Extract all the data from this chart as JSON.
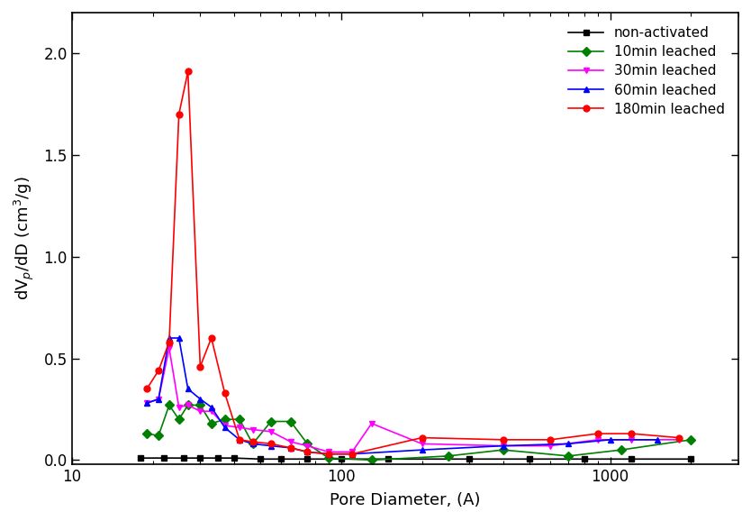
{
  "title": "",
  "xlabel": "Pore Diameter, (A)",
  "ylabel": "dV_p/dD (cm3/g)",
  "xlim": [
    10,
    3000
  ],
  "ylim": [
    -0.02,
    2.2
  ],
  "yticks": [
    0.0,
    0.5,
    1.0,
    1.5,
    2.0
  ],
  "series": [
    {
      "label": "non-activated",
      "color": "#000000",
      "marker": "s",
      "markersize": 5,
      "x": [
        18,
        22,
        26,
        30,
        35,
        40,
        50,
        60,
        75,
        100,
        150,
        300,
        500,
        800,
        1200,
        2000
      ],
      "y": [
        0.01,
        0.01,
        0.01,
        0.01,
        0.01,
        0.01,
        0.005,
        0.005,
        0.005,
        0.005,
        0.005,
        0.005,
        0.005,
        0.005,
        0.005,
        0.005
      ]
    },
    {
      "label": "10min leached",
      "color": "#008000",
      "marker": "D",
      "markersize": 5,
      "x": [
        19,
        21,
        23,
        25,
        27,
        30,
        33,
        37,
        42,
        47,
        55,
        65,
        75,
        90,
        130,
        250,
        400,
        700,
        1100,
        2000
      ],
      "y": [
        0.13,
        0.12,
        0.27,
        0.2,
        0.27,
        0.27,
        0.18,
        0.2,
        0.2,
        0.08,
        0.19,
        0.19,
        0.08,
        0.01,
        0.0,
        0.02,
        0.05,
        0.02,
        0.05,
        0.1
      ]
    },
    {
      "label": "30min leached",
      "color": "#ff00ff",
      "marker": "v",
      "markersize": 5,
      "x": [
        19,
        21,
        23,
        25,
        27,
        30,
        33,
        37,
        42,
        47,
        55,
        65,
        75,
        90,
        110,
        130,
        200,
        400,
        600,
        900,
        1200,
        1800
      ],
      "y": [
        0.28,
        0.3,
        0.55,
        0.26,
        0.27,
        0.24,
        0.24,
        0.17,
        0.16,
        0.15,
        0.14,
        0.09,
        0.07,
        0.04,
        0.04,
        0.18,
        0.08,
        0.07,
        0.07,
        0.1,
        0.1,
        0.1
      ]
    },
    {
      "label": "60min leached",
      "color": "#0000ff",
      "marker": "^",
      "markersize": 5,
      "x": [
        19,
        21,
        23,
        25,
        27,
        30,
        33,
        37,
        42,
        47,
        55,
        65,
        75,
        90,
        110,
        200,
        400,
        700,
        1000,
        1500
      ],
      "y": [
        0.28,
        0.3,
        0.6,
        0.6,
        0.35,
        0.3,
        0.26,
        0.16,
        0.1,
        0.08,
        0.07,
        0.06,
        0.04,
        0.03,
        0.03,
        0.05,
        0.07,
        0.08,
        0.1,
        0.1
      ]
    },
    {
      "label": "180min leached",
      "color": "#ff0000",
      "marker": "o",
      "markersize": 5,
      "x": [
        19,
        21,
        23,
        25,
        27,
        30,
        33,
        37,
        42,
        47,
        55,
        65,
        75,
        90,
        110,
        200,
        400,
        600,
        900,
        1200,
        1800
      ],
      "y": [
        0.35,
        0.44,
        0.58,
        1.7,
        1.91,
        0.46,
        0.6,
        0.33,
        0.1,
        0.09,
        0.08,
        0.06,
        0.04,
        0.03,
        0.03,
        0.11,
        0.1,
        0.1,
        0.13,
        0.13,
        0.11
      ]
    }
  ]
}
